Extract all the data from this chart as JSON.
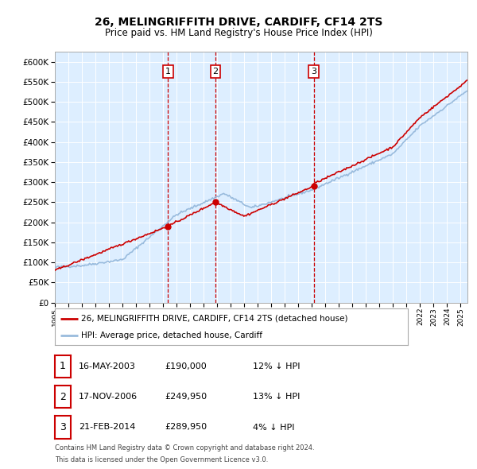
{
  "title": "26, MELINGRIFFITH DRIVE, CARDIFF, CF14 2TS",
  "subtitle": "Price paid vs. HM Land Registry's House Price Index (HPI)",
  "background_color": "#ffffff",
  "plot_bg_color": "#ddeeff",
  "grid_color": "#ffffff",
  "hpi_line_color": "#99bbdd",
  "price_line_color": "#cc0000",
  "sale_marker_color": "#cc0000",
  "vline_color": "#cc0000",
  "ylim_max": 625000,
  "yticks": [
    0,
    50000,
    100000,
    150000,
    200000,
    250000,
    300000,
    350000,
    400000,
    450000,
    500000,
    550000,
    600000
  ],
  "legend_label_price": "26, MELINGRIFFITH DRIVE, CARDIFF, CF14 2TS (detached house)",
  "legend_label_hpi": "HPI: Average price, detached house, Cardiff",
  "sales": [
    {
      "label": "1",
      "date": "16-MAY-2003",
      "price": 190000,
      "hpi_pct": "12% ↓ HPI",
      "x_year": 2003.37
    },
    {
      "label": "2",
      "date": "17-NOV-2006",
      "price": 249950,
      "hpi_pct": "13% ↓ HPI",
      "x_year": 2006.88
    },
    {
      "label": "3",
      "date": "21-FEB-2014",
      "price": 289950,
      "hpi_pct": "4% ↓ HPI",
      "x_year": 2014.13
    }
  ],
  "footnote_line1": "Contains HM Land Registry data © Crown copyright and database right 2024.",
  "footnote_line2": "This data is licensed under the Open Government Licence v3.0.",
  "xmin": 1995,
  "xmax": 2025.5
}
